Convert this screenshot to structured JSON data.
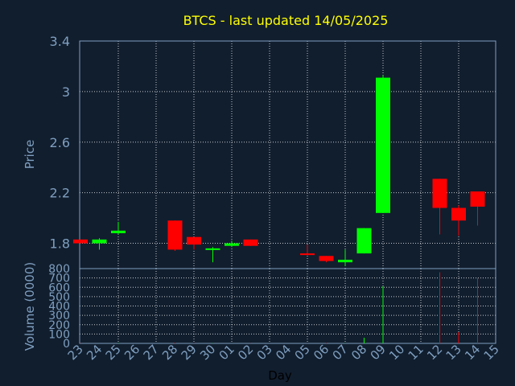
{
  "chart_data": {
    "type": "candlestick",
    "title": "BTCS - last updated 14/05/2025",
    "xlabel": "Day",
    "categories": [
      "23",
      "24",
      "25",
      "26",
      "27",
      "28",
      "29",
      "30",
      "01",
      "02",
      "03",
      "04",
      "05",
      "06",
      "07",
      "08",
      "09",
      "10",
      "11",
      "12",
      "13",
      "14",
      "15"
    ],
    "price": {
      "ylabel": "Price",
      "ylim": [
        1.6,
        3.4
      ],
      "yticks": [
        "1.8",
        "2.2",
        "2.6",
        "3",
        "3.4"
      ],
      "candles": [
        {
          "x": "23",
          "open": 1.83,
          "high": 1.83,
          "low": 1.8,
          "close": 1.8
        },
        {
          "x": "24",
          "open": 1.8,
          "high": 1.84,
          "low": 1.75,
          "close": 1.83
        },
        {
          "x": "25",
          "open": 1.88,
          "high": 1.97,
          "low": 1.87,
          "close": 1.9
        },
        {
          "x": "28",
          "open": 1.98,
          "high": 1.98,
          "low": 1.74,
          "close": 1.75
        },
        {
          "x": "29",
          "open": 1.85,
          "high": 1.85,
          "low": 1.75,
          "close": 1.79
        },
        {
          "x": "30",
          "open": 1.75,
          "high": 1.77,
          "low": 1.65,
          "close": 1.76
        },
        {
          "x": "01",
          "open": 1.78,
          "high": 1.82,
          "low": 1.77,
          "close": 1.8
        },
        {
          "x": "02",
          "open": 1.83,
          "high": 1.83,
          "low": 1.78,
          "close": 1.78
        },
        {
          "x": "05",
          "open": 1.72,
          "high": 1.79,
          "low": 1.71,
          "close": 1.71
        },
        {
          "x": "06",
          "open": 1.7,
          "high": 1.7,
          "low": 1.65,
          "close": 1.66
        },
        {
          "x": "07",
          "open": 1.65,
          "high": 1.75,
          "low": 1.62,
          "close": 1.67
        },
        {
          "x": "08",
          "open": 1.72,
          "high": 1.92,
          "low": 1.72,
          "close": 1.92
        },
        {
          "x": "09",
          "open": 2.04,
          "high": 3.13,
          "low": 2.04,
          "close": 3.11
        },
        {
          "x": "12",
          "open": 2.31,
          "high": 2.31,
          "low": 1.87,
          "close": 2.08
        },
        {
          "x": "13",
          "open": 2.08,
          "high": 2.1,
          "low": 1.86,
          "close": 1.98
        },
        {
          "x": "14",
          "open": 2.21,
          "high": 2.21,
          "low": 1.94,
          "close": 2.09
        }
      ]
    },
    "volume": {
      "ylabel": "Volume (0000)",
      "ylim": [
        0,
        800
      ],
      "yticks": [
        "0",
        "100",
        "200",
        "300",
        "400",
        "500",
        "600",
        "700",
        "800"
      ],
      "bars": [
        {
          "x": "23",
          "value": 2,
          "dir": "down"
        },
        {
          "x": "24",
          "value": 4,
          "dir": "up"
        },
        {
          "x": "25",
          "value": 3,
          "dir": "up"
        },
        {
          "x": "28",
          "value": 5,
          "dir": "down"
        },
        {
          "x": "29",
          "value": 2,
          "dir": "down"
        },
        {
          "x": "30",
          "value": 2,
          "dir": "up"
        },
        {
          "x": "01",
          "value": 1,
          "dir": "up"
        },
        {
          "x": "02",
          "value": 1,
          "dir": "down"
        },
        {
          "x": "05",
          "value": 1,
          "dir": "down"
        },
        {
          "x": "06",
          "value": 2,
          "dir": "down"
        },
        {
          "x": "07",
          "value": 3,
          "dir": "up"
        },
        {
          "x": "08",
          "value": 60,
          "dir": "up"
        },
        {
          "x": "09",
          "value": 610,
          "dir": "up"
        },
        {
          "x": "12",
          "value": 760,
          "dir": "down"
        },
        {
          "x": "13",
          "value": 120,
          "dir": "down"
        },
        {
          "x": "14",
          "value": 700,
          "dir": "down"
        }
      ]
    },
    "colors": {
      "background": "#111e2e",
      "up": "#00ff00",
      "down": "#ff0000",
      "title": "#ffff00",
      "axis_text": "#7f9fc0",
      "grid": "#ffffff",
      "frame": "#7f9fc0"
    },
    "grid": true
  }
}
